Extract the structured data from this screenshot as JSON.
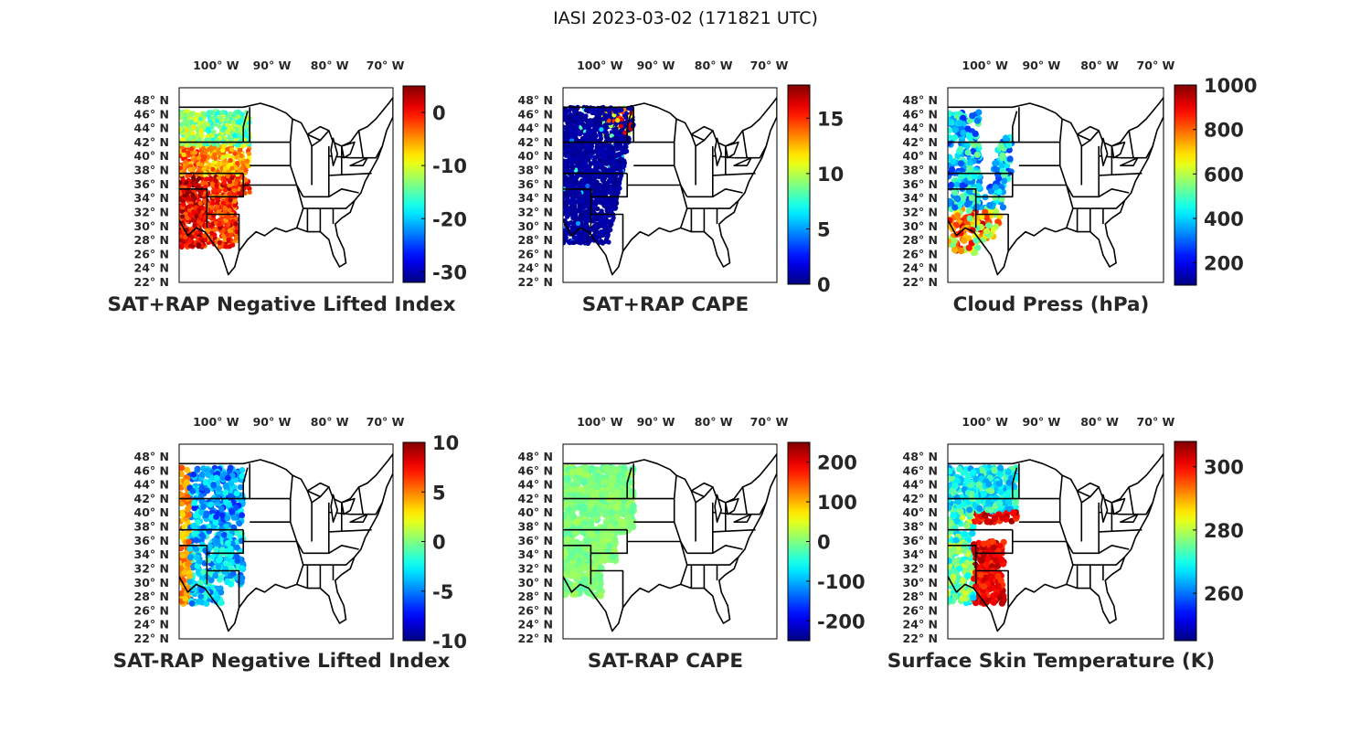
{
  "figure": {
    "title": "IASI 2023-03-02 (171821 UTC)"
  },
  "axes": {
    "lon_ticks": [
      {
        "deg": "100",
        "unit": "W"
      },
      {
        "deg": "90",
        "unit": "W"
      },
      {
        "deg": "80",
        "unit": "W"
      },
      {
        "deg": "70",
        "unit": "W"
      }
    ],
    "lat_ticks": [
      {
        "deg": "48",
        "unit": "N"
      },
      {
        "deg": "46",
        "unit": "N"
      },
      {
        "deg": "44",
        "unit": "N"
      },
      {
        "deg": "42",
        "unit": "N"
      },
      {
        "deg": "40",
        "unit": "N"
      },
      {
        "deg": "38",
        "unit": "N"
      },
      {
        "deg": "36",
        "unit": "N"
      },
      {
        "deg": "34",
        "unit": "N"
      },
      {
        "deg": "32",
        "unit": "N"
      },
      {
        "deg": "30",
        "unit": "N"
      },
      {
        "deg": "28",
        "unit": "N"
      },
      {
        "deg": "26",
        "unit": "N"
      },
      {
        "deg": "24",
        "unit": "N"
      },
      {
        "deg": "22",
        "unit": "N"
      }
    ],
    "degree_symbol": "°"
  },
  "panels": [
    {
      "title": "SAT+RAP Negative Lifted Index",
      "colorbar": {
        "min": -32,
        "max": 5,
        "ticks": [
          "0",
          "-10",
          "-20",
          "-30"
        ],
        "tick_values": [
          0,
          -10,
          -20,
          -30
        ]
      }
    },
    {
      "title": "SAT+RAP CAPE",
      "colorbar": {
        "min": 0,
        "max": 18,
        "ticks": [
          "15",
          "10",
          "5",
          "0"
        ],
        "tick_values": [
          15,
          10,
          5,
          0
        ]
      }
    },
    {
      "title": "Cloud Press (hPa)",
      "colorbar": {
        "min": 100,
        "max": 1000,
        "ticks": [
          "1000",
          "800",
          "600",
          "400",
          "200"
        ],
        "tick_values": [
          1000,
          800,
          600,
          400,
          200
        ]
      }
    },
    {
      "title": "SAT-RAP Negative Lifted Index",
      "colorbar": {
        "min": -10,
        "max": 10,
        "ticks": [
          "10",
          "5",
          "0",
          "-5",
          "-10"
        ],
        "tick_values": [
          10,
          5,
          0,
          -5,
          -10
        ]
      }
    },
    {
      "title": "SAT-RAP CAPE",
      "colorbar": {
        "min": -250,
        "max": 250,
        "ticks": [
          "200",
          "100",
          "0",
          "-100",
          "-200"
        ],
        "tick_values": [
          200,
          100,
          0,
          -100,
          -200
        ]
      }
    },
    {
      "title": "Surface Skin Temperature (K)",
      "colorbar": {
        "min": 245,
        "max": 308,
        "ticks": [
          "300",
          "280",
          "260"
        ],
        "tick_values": [
          300,
          280,
          260
        ]
      }
    }
  ],
  "colormap": "jet"
}
